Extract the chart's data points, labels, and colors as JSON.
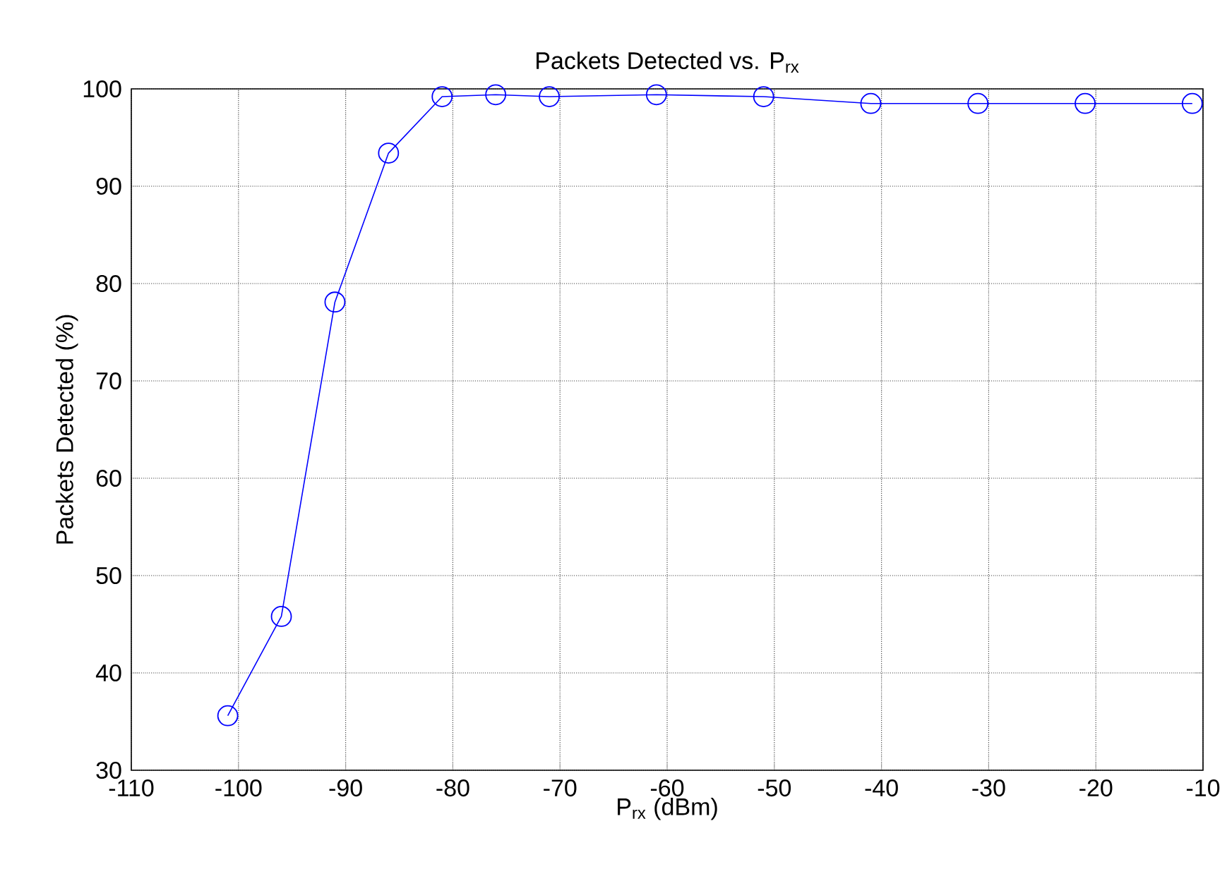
{
  "chart_data": {
    "type": "line",
    "title": "Packets Detected vs. P$_{rx}$",
    "xlabel": "P$_{rx}$ (dBm)",
    "ylabel": "Packets Detected (%)",
    "x": [
      -101,
      -96,
      -91,
      -86,
      -81,
      -76,
      -71,
      -61,
      -51,
      -41,
      -31,
      -21,
      -11
    ],
    "series": [
      {
        "color": "#0000ff",
        "values": [
          35.6,
          45.8,
          78.1,
          93.4,
          99.2,
          99.4,
          99.2,
          99.4,
          99.2,
          98.5,
          98.5,
          98.5,
          98.5
        ]
      }
    ],
    "xlim": [
      -110,
      -10
    ],
    "ylim": [
      30,
      100
    ],
    "xticks": [
      -110,
      -100,
      -90,
      -80,
      -70,
      -60,
      -50,
      -40,
      -30,
      -20,
      -10
    ],
    "yticks": [
      30,
      40,
      50,
      60,
      70,
      80,
      90,
      100
    ],
    "grid": true,
    "marker": "circle",
    "line_style": "solid"
  }
}
